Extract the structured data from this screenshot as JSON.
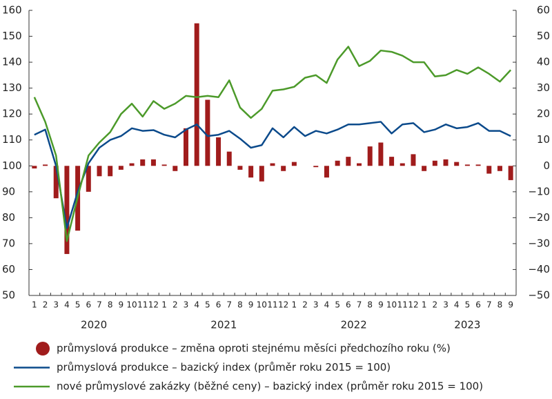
{
  "chart_data": {
    "type": "bar-line",
    "categories": [
      "1",
      "2",
      "3",
      "4",
      "5",
      "6",
      "7",
      "8",
      "9",
      "10",
      "11",
      "12",
      "1",
      "2",
      "3",
      "4",
      "5",
      "6",
      "7",
      "8",
      "9",
      "10",
      "11",
      "12",
      "1",
      "2",
      "3",
      "4",
      "5",
      "6",
      "7",
      "8",
      "9",
      "10",
      "11",
      "12",
      "1",
      "2",
      "3",
      "4",
      "5",
      "6",
      "7",
      "8",
      "9"
    ],
    "years": [
      "2020",
      "2021",
      "2022",
      "2023"
    ],
    "series": [
      {
        "name": "průmyslová produkce – změna oproti stejnému měsíci předchozího roku (%)",
        "type": "bar",
        "axis": "y2",
        "color": "#a01c1c",
        "values": [
          -1,
          0.5,
          -12.5,
          -34,
          -25,
          -10,
          -4,
          -4,
          -1.5,
          1,
          2.5,
          2.5,
          0.5,
          -2,
          14.5,
          55,
          25.5,
          11,
          5.5,
          -1.5,
          -4.5,
          -6,
          1,
          -2,
          1.5,
          0,
          -0.5,
          -4.5,
          2,
          3.5,
          1,
          7.5,
          9,
          3.5,
          1,
          4.5,
          -2,
          2,
          2.5,
          1.5,
          0.5,
          0.5,
          -3,
          -2,
          -5.5
        ]
      },
      {
        "name": "průmyslová produkce – bazický index (průměr roku 2015 = 100)",
        "type": "line",
        "color": "#0b4a8b",
        "values": [
          112,
          114,
          100,
          76,
          90,
          101,
          107,
          110,
          111.5,
          114.5,
          113.5,
          113.8,
          112,
          111,
          114,
          116,
          111.5,
          112,
          113.5,
          110.5,
          107,
          108,
          114.5,
          111,
          115,
          111.5,
          113.5,
          112.5,
          114,
          116,
          116,
          116.5,
          117,
          112.5,
          116,
          116.5,
          113,
          114,
          116,
          114.5,
          115,
          116.5,
          113.5,
          113.5,
          111.5
        ]
      },
      {
        "name": "nové průmyslové zakázky (běžné ceny) – bazický index (průměr roku 2015 = 100)",
        "type": "line",
        "color": "#4c9a2a",
        "values": [
          126.5,
          117,
          104,
          71,
          88,
          104,
          109,
          113,
          120,
          124,
          119,
          125,
          122,
          124,
          127,
          126.5,
          127,
          126.5,
          133,
          122.5,
          118.5,
          122,
          129,
          129.5,
          130.5,
          134,
          135,
          132,
          141,
          146,
          138.5,
          140.5,
          144.5,
          144,
          142.5,
          140,
          140,
          134.5,
          135,
          137,
          135.5,
          138,
          135.5,
          132.5,
          137
        ]
      }
    ],
    "ylim": [
      50,
      160
    ],
    "yticks": [
      50,
      60,
      70,
      80,
      90,
      100,
      110,
      120,
      130,
      140,
      150,
      160
    ],
    "y2lim": [
      -50,
      60
    ],
    "y2ticks": [
      {
        "value": -50,
        "label": "−50"
      },
      {
        "value": -40,
        "label": "−40"
      },
      {
        "value": -30,
        "label": "−30"
      },
      {
        "value": -20,
        "label": "−20"
      },
      {
        "value": -10,
        "label": "−10"
      },
      0,
      10,
      20,
      30,
      40,
      50,
      60
    ],
    "grid": false
  }
}
